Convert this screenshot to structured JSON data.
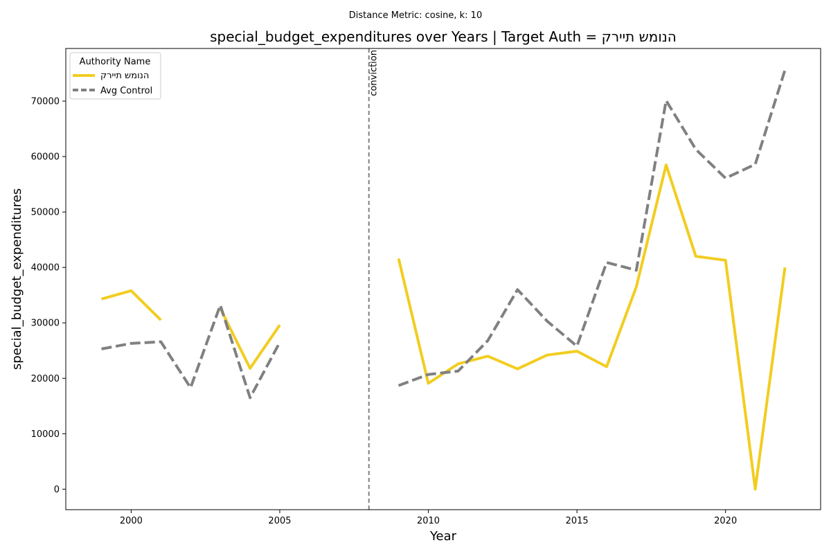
{
  "chart_data": {
    "type": "line",
    "suptitle": "Distance Metric: cosine, k: 10",
    "title": "special_budget_expenditures over Years | Target Auth = הנומש תיירק",
    "xlabel": "Year",
    "ylabel": "special_budget_expenditures",
    "xlim": [
      1997.8,
      2023.2
    ],
    "ylim": [
      -3700,
      79500
    ],
    "xticks": [
      2000,
      2005,
      2010,
      2015,
      2020
    ],
    "yticks": [
      0,
      10000,
      20000,
      30000,
      40000,
      50000,
      60000,
      70000
    ],
    "grid": false,
    "legend": {
      "title": "Authority Name",
      "placement": "top-left"
    },
    "annotations": [
      {
        "type": "vline",
        "x": 2008,
        "label": "conviction",
        "color": "#808080"
      }
    ],
    "series": [
      {
        "name": "הנומש תיירק",
        "color": "#f2cd20",
        "style": "solid",
        "segments": [
          [
            [
              1999,
              34300
            ],
            [
              2000,
              35800
            ],
            [
              2001,
              30500
            ]
          ],
          [
            [
              2003,
              32600
            ],
            [
              2004,
              21800
            ],
            [
              2005,
              29600
            ]
          ],
          [
            [
              2009,
              41600
            ],
            [
              2010,
              19100
            ],
            [
              2011,
              22600
            ],
            [
              2012,
              24000
            ],
            [
              2013,
              21700
            ],
            [
              2014,
              24200
            ],
            [
              2015,
              24900
            ],
            [
              2016,
              22100
            ],
            [
              2017,
              36500
            ],
            [
              2018,
              58500
            ],
            [
              2019,
              42000
            ],
            [
              2020,
              41300
            ],
            [
              2021,
              0
            ],
            [
              2022,
              40000
            ]
          ]
        ]
      },
      {
        "name": "Avg Control",
        "color": "#808080",
        "style": "dashed",
        "segments": [
          [
            [
              1999,
              25300
            ],
            [
              2000,
              26300
            ],
            [
              2001,
              26600
            ],
            [
              2002,
              18300
            ],
            [
              2003,
              33200
            ],
            [
              2004,
              16500
            ],
            [
              2005,
              26500
            ]
          ],
          [
            [
              2009,
              18700
            ],
            [
              2010,
              20700
            ],
            [
              2011,
              21300
            ],
            [
              2012,
              26800
            ],
            [
              2013,
              36000
            ],
            [
              2014,
              30300
            ],
            [
              2015,
              25800
            ],
            [
              2016,
              40900
            ],
            [
              2017,
              39500
            ],
            [
              2018,
              70100
            ],
            [
              2019,
              61300
            ],
            [
              2020,
              56100
            ],
            [
              2021,
              58600
            ],
            [
              2022,
              75600
            ]
          ]
        ]
      }
    ]
  }
}
